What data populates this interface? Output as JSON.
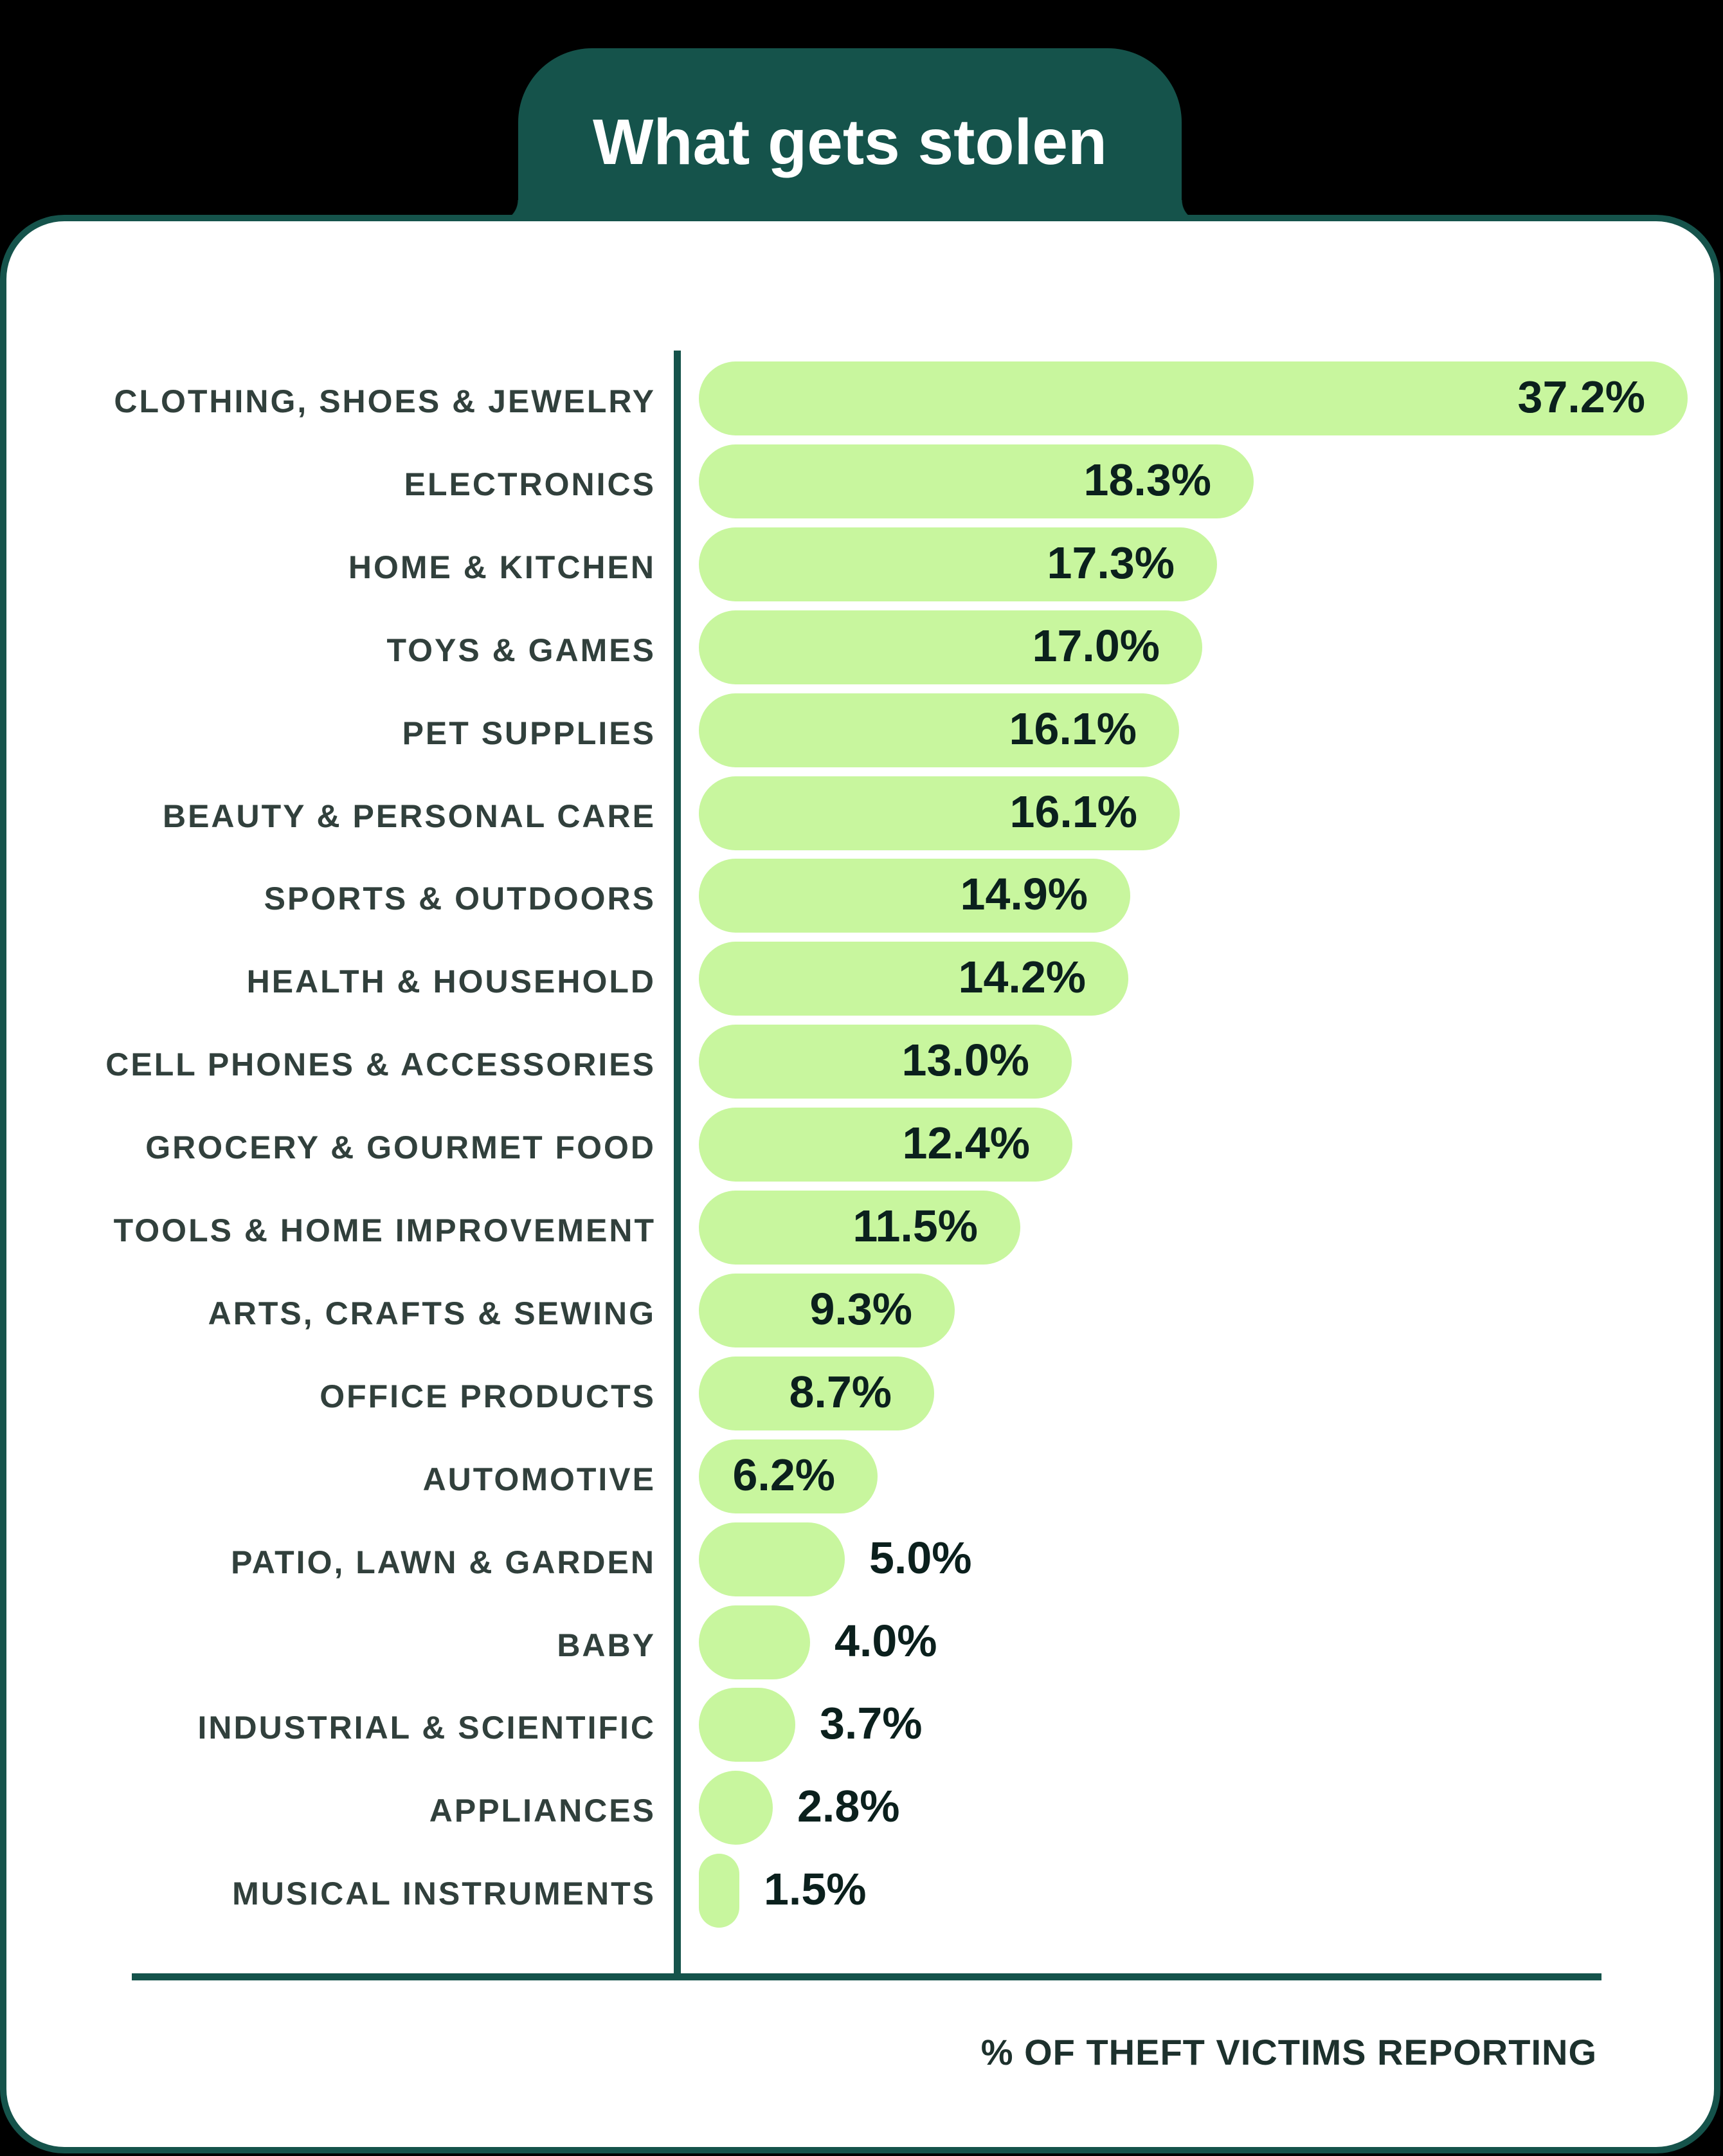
{
  "header": {
    "title": "What gets stolen"
  },
  "chart_data": {
    "type": "bar",
    "orientation": "horizontal",
    "title": "What gets stolen",
    "categories": [
      "CLOTHING, SHOES & JEWELRY",
      "ELECTRONICS",
      "HOME & KITCHEN",
      "TOYS & GAMES",
      "PET SUPPLIES",
      "BEAUTY & PERSONAL CARE",
      "SPORTS & OUTDOORS",
      "HEALTH & HOUSEHOLD",
      "CELL PHONES & ACCESSORIES",
      "GROCERY & GOURMET FOOD",
      "TOOLS & HOME IMPROVEMENT",
      "ARTS, CRAFTS & SEWING",
      "OFFICE PRODUCTS",
      "AUTOMOTIVE",
      "PATIO, LAWN & GARDEN",
      "BABY",
      "INDUSTRIAL & SCIENTIFIC",
      "APPLIANCES",
      "MUSICAL INSTRUMENTS"
    ],
    "values": [
      37.2,
      18.3,
      17.3,
      17.0,
      16.1,
      16.1,
      14.9,
      14.2,
      13.0,
      12.4,
      11.5,
      9.3,
      8.7,
      6.2,
      5.0,
      4.0,
      3.7,
      2.8,
      1.5
    ],
    "value_suffix": "%",
    "xlabel": "% OF THEFT VICTIMS REPORTING",
    "xlim": [
      0,
      38
    ],
    "grid": false,
    "layout_hints": {
      "bar_pixel_widths": [
        1538,
        863,
        806,
        783,
        747,
        748,
        671,
        668,
        580,
        581,
        500,
        398,
        366,
        278,
        227,
        173,
        150,
        115,
        63
      ],
      "value_label_inside_min_width": 240
    }
  },
  "colors": {
    "background": "#000000",
    "card": "#ffffff",
    "teal": "#15534b",
    "bar_green": "#c8f69e",
    "title_text": "#ffffff",
    "percent_text": "#0b201d",
    "category_text": "#31403c",
    "xlabel_text": "#1d312d"
  }
}
